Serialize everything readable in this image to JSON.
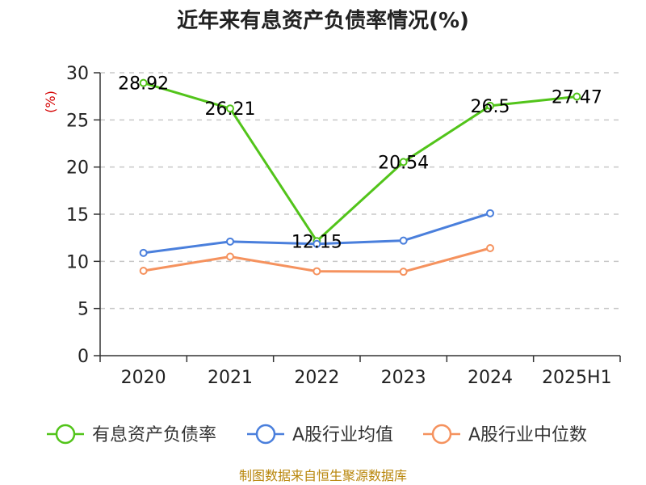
{
  "chart_data": {
    "type": "line",
    "title": "近年来有息资产负债率情况(%)",
    "ylabel": "(%)",
    "ylim": [
      0,
      30
    ],
    "yticks": [
      0,
      5,
      10,
      15,
      20,
      25,
      30
    ],
    "categories": [
      "2020",
      "2021",
      "2022",
      "2023",
      "2024",
      "2025H1"
    ],
    "series": [
      {
        "name": "有息资产负债率",
        "color": "#52c41a",
        "values": [
          28.92,
          26.21,
          12.15,
          20.54,
          26.5,
          27.47
        ],
        "labels": [
          "28.92",
          "26.21",
          "12.15",
          "20.54",
          "26.5",
          "27.47"
        ],
        "show_labels": true
      },
      {
        "name": "A股行业均值",
        "color": "#4a7fdc",
        "values": [
          10.9,
          12.1,
          11.85,
          12.2,
          15.1,
          null
        ],
        "show_labels": false
      },
      {
        "name": "A股行业中位数",
        "color": "#f5925e",
        "values": [
          9.0,
          10.5,
          8.95,
          8.9,
          11.4,
          null
        ],
        "show_labels": false
      }
    ],
    "grid": true,
    "grid_style": "dashed horizontal",
    "legend_position": "bottom",
    "source": "制图数据来自恒生聚源数据库"
  }
}
